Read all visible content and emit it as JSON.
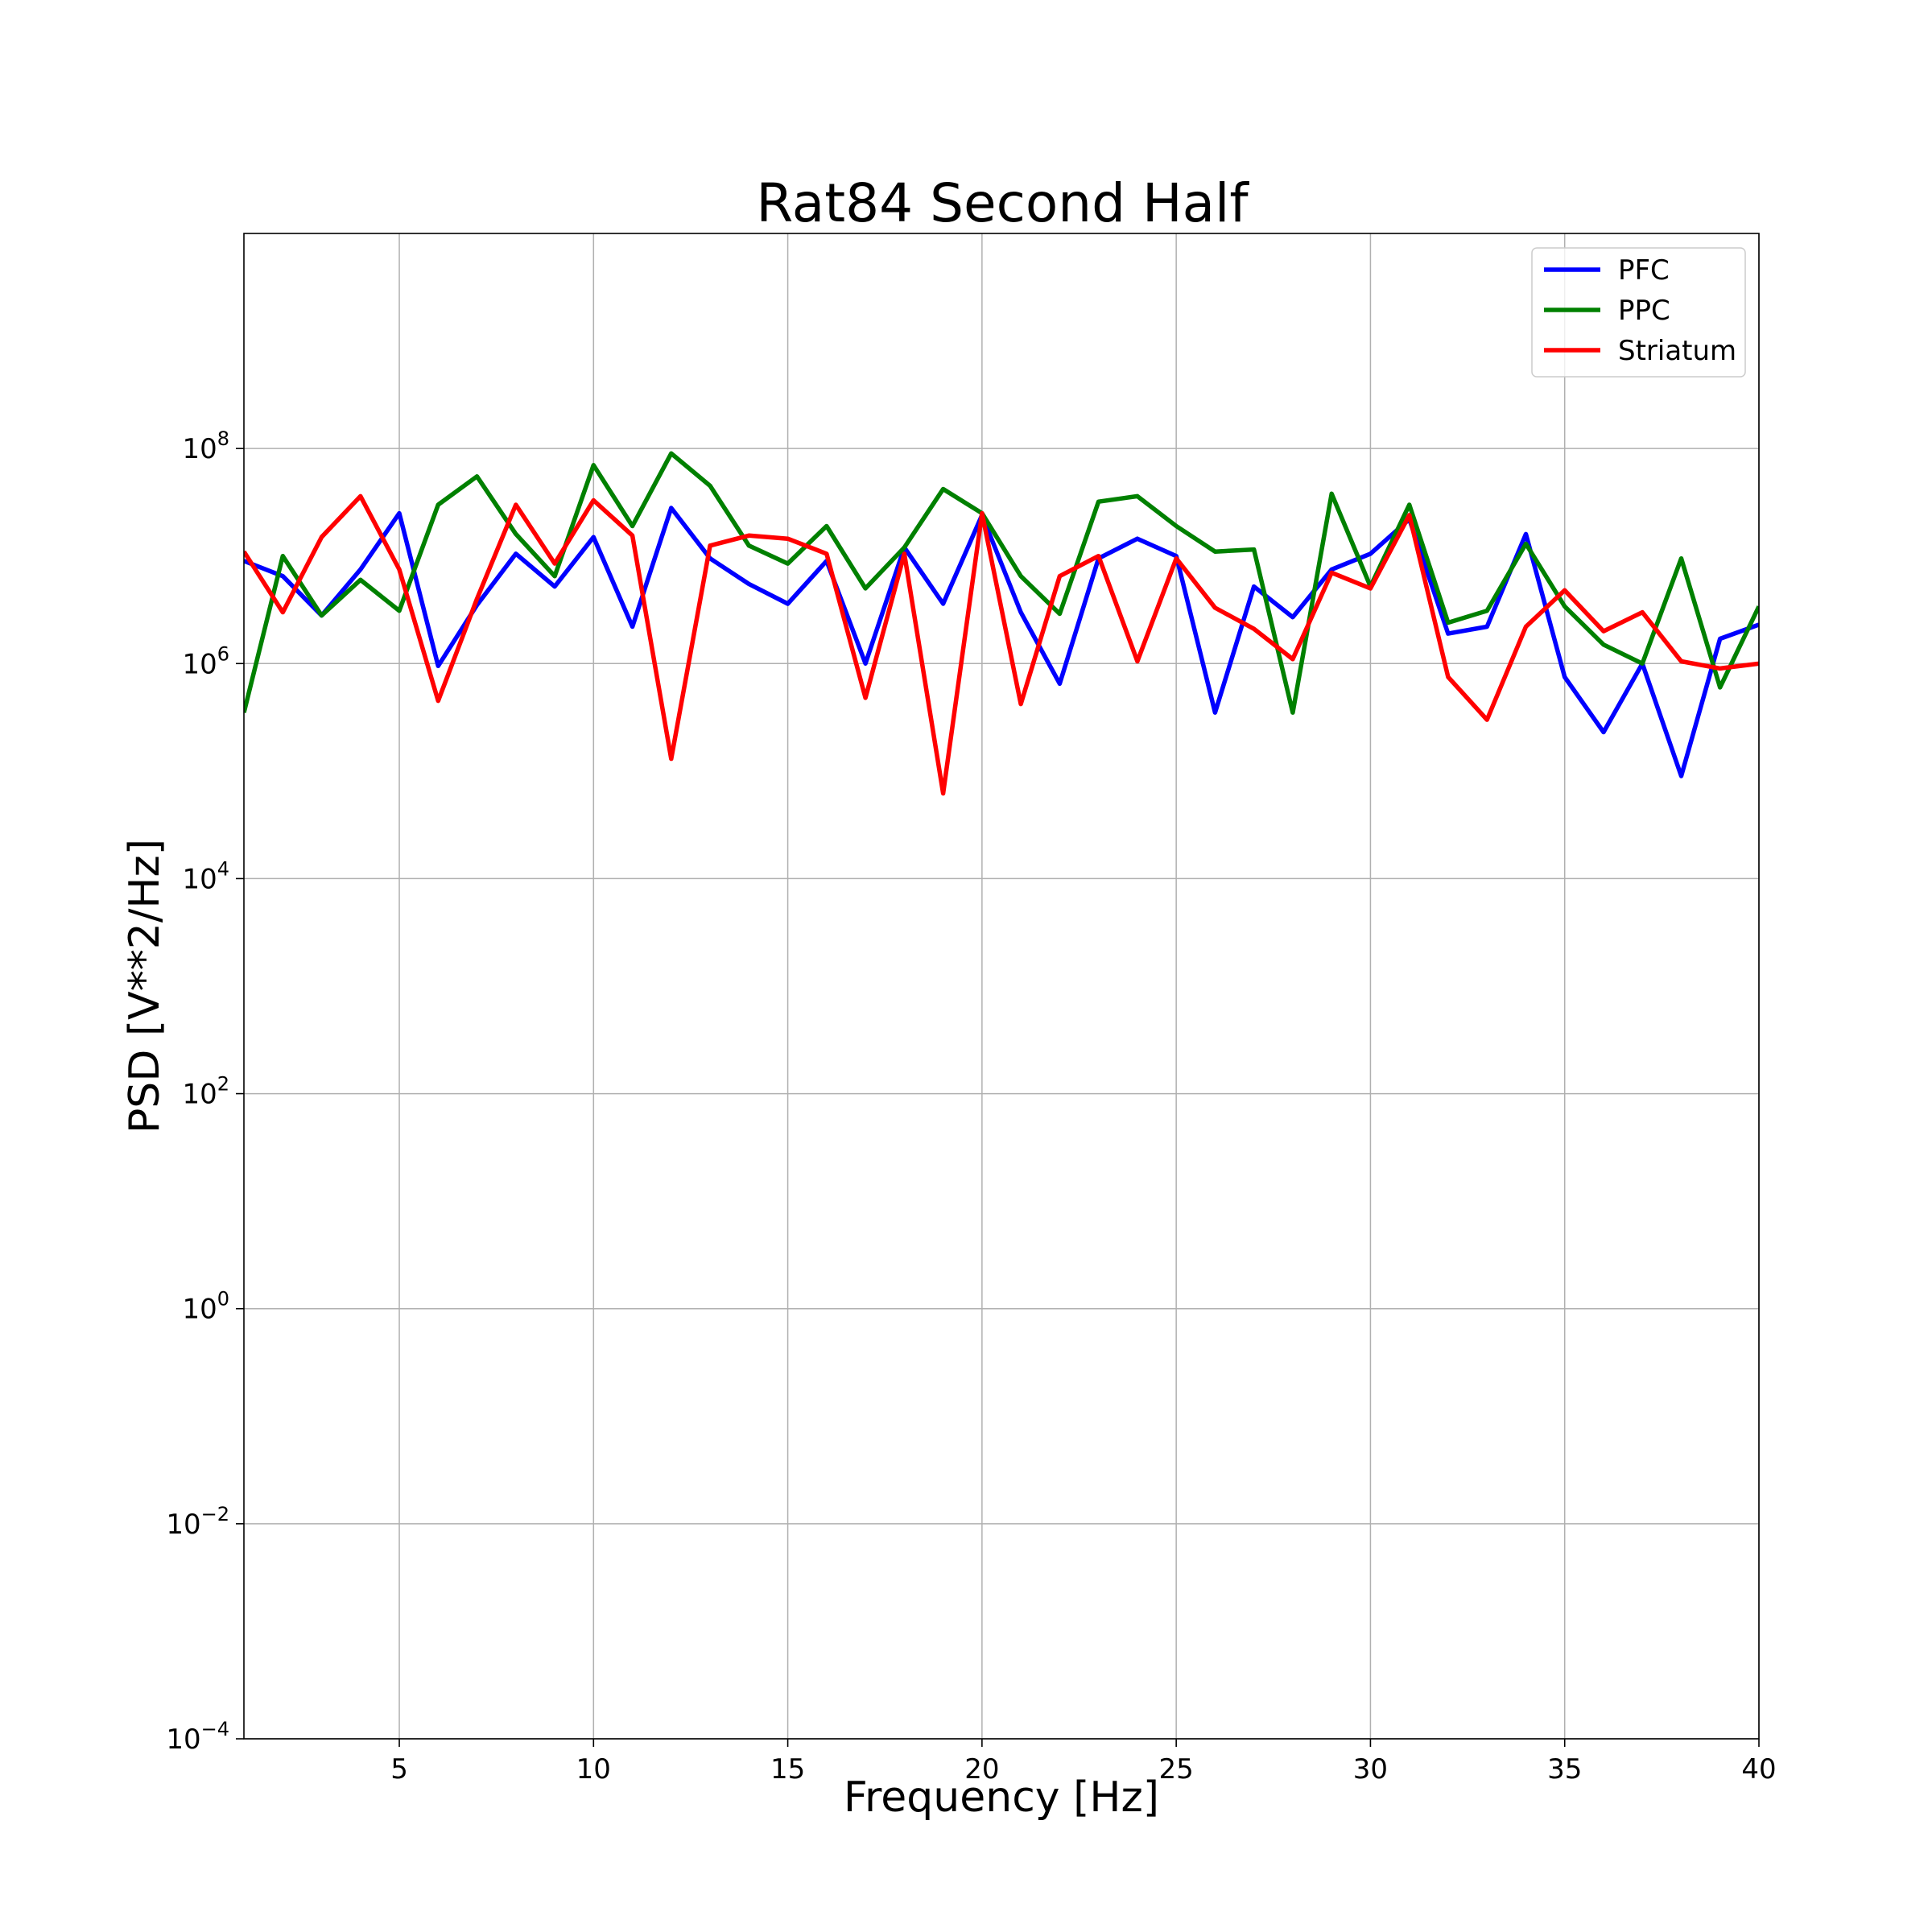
{
  "chart_data": {
    "type": "line",
    "title": "Rat84 Second Half",
    "xlabel": "Frequency [Hz]",
    "ylabel": "PSD [V**2/Hz]",
    "xlim": [
      1,
      40
    ],
    "ylim": [
      0.0001,
      10000000000
    ],
    "yscale": "log",
    "grid": true,
    "legend_position": "top-right",
    "x_ticks": [
      5,
      10,
      15,
      20,
      25,
      30,
      35,
      40
    ],
    "y_ticks": [
      {
        "base": "10",
        "exp": "−4",
        "value": 0.0001
      },
      {
        "base": "10",
        "exp": "−2",
        "value": 0.01
      },
      {
        "base": "10",
        "exp": "0",
        "value": 1
      },
      {
        "base": "10",
        "exp": "2",
        "value": 100
      },
      {
        "base": "10",
        "exp": "4",
        "value": 10000
      },
      {
        "base": "10",
        "exp": "6",
        "value": 1000000
      },
      {
        "base": "10",
        "exp": "8",
        "value": 100000000
      }
    ],
    "x": [
      1,
      2,
      3,
      4,
      5,
      6,
      7,
      8,
      9,
      10,
      11,
      12,
      13,
      14,
      15,
      16,
      17,
      18,
      19,
      20,
      21,
      22,
      23,
      24,
      25,
      26,
      27,
      28,
      29,
      30,
      31,
      32,
      33,
      34,
      35,
      36,
      37,
      38,
      39,
      40
    ],
    "series": [
      {
        "name": "PFC",
        "color": "#0000ff",
        "values": [
          9000000,
          6500000,
          2800000,
          7500000,
          25000000,
          950000,
          3500000,
          10500000,
          5200000,
          15000000,
          2200000,
          28000000,
          9500000,
          5500000,
          3600000,
          9000000,
          1000000,
          12000000,
          3600000,
          24000000,
          3000000,
          650000,
          9500000,
          14500000,
          10000000,
          350000,
          5200000,
          2700000,
          7500000,
          10500000,
          22000000,
          1900000,
          2200000,
          16000000,
          750000,
          230000,
          1000000,
          90000,
          1700000,
          2300000
        ]
      },
      {
        "name": "PPC",
        "color": "#008000",
        "values": [
          350000,
          10000000,
          2800000,
          6000000,
          3100000,
          30000000,
          55000000,
          16000000,
          6500000,
          70000000,
          19000000,
          90000000,
          45000000,
          12500000,
          8500000,
          19000000,
          5000000,
          12000000,
          42000000,
          25000000,
          6500000,
          2900000,
          32000000,
          36000000,
          19000000,
          11000000,
          11500000,
          350000,
          38000000,
          5200000,
          30000000,
          2400000,
          3100000,
          13000000,
          3400000,
          1500000,
          1000000,
          9500000,
          600000,
          3400000
        ]
      },
      {
        "name": "Striatum",
        "color": "#ff0000",
        "values": [
          11000000,
          3000000,
          15000000,
          36000000,
          7500000,
          450000,
          4000000,
          30000000,
          8500000,
          33000000,
          15500000,
          130000,
          12500000,
          15500000,
          14500000,
          10500000,
          480000,
          10500000,
          62000,
          25000000,
          420000,
          6500000,
          10000000,
          1050000,
          9500000,
          3300000,
          2100000,
          1100000,
          7000000,
          5000000,
          24000000,
          750000,
          300000,
          2200000,
          4800000,
          2000000,
          3000000,
          1050000,
          900000,
          1000000
        ]
      }
    ]
  }
}
